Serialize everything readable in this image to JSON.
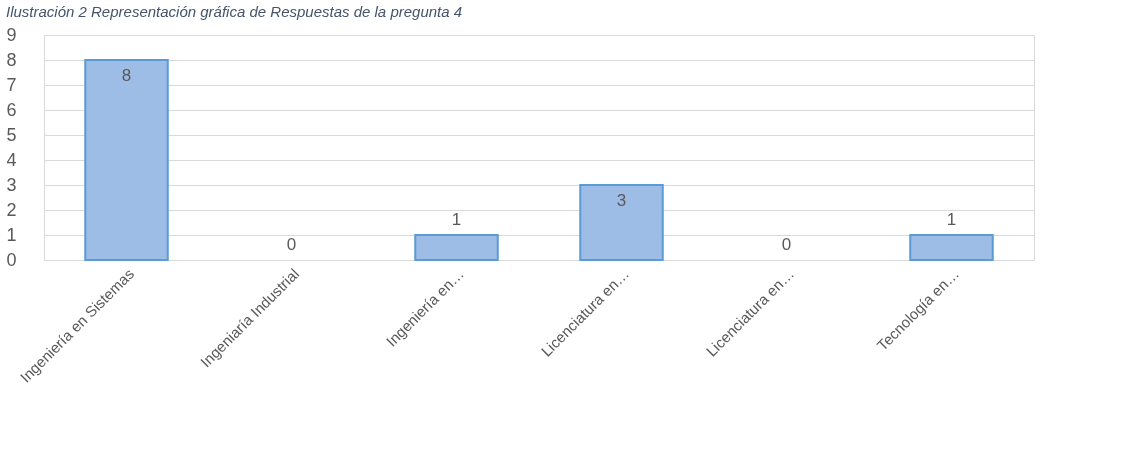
{
  "chart_data": {
    "type": "bar",
    "title": "Ilustración 2 Representación gráfica de Respuestas de la pregunta 4",
    "categories": [
      "Ingeniería en Sistemas",
      "Ingeniaría Industrial",
      "Ingeniería en…",
      "Licenciatura en…",
      "Licenciatura en…",
      "Tecnología en…"
    ],
    "values": [
      8,
      0,
      1,
      3,
      0,
      1
    ],
    "color": "#9dbde6",
    "ylim": [
      0,
      9
    ],
    "yticks": [
      0,
      1,
      2,
      3,
      4,
      5,
      6,
      7,
      8,
      9
    ],
    "grid": "y",
    "data_labels": true
  }
}
